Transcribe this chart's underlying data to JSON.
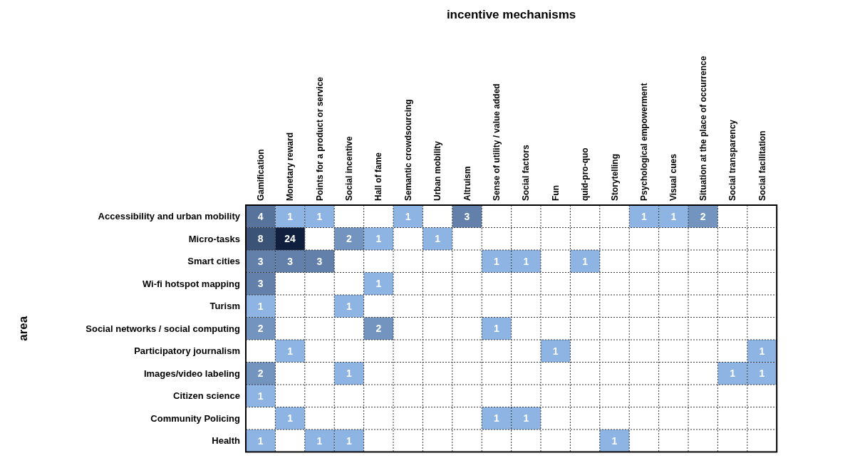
{
  "chart_data": {
    "type": "heatmap",
    "title": "incentive mechanisms",
    "ylabel": "area",
    "grid": true,
    "data_labels": true,
    "categories": [
      "Gamification",
      "Monetary reward",
      "Points for a product or service",
      "Social incentive",
      "Hall of fame",
      "Semantic crowdsourcing",
      "Urban mobility",
      "Altruism",
      "Sense of utility / value added",
      "Social factors",
      "Fun",
      "quid-pro-quo",
      "Storytelling",
      "Psychological empowerment",
      "Visual cues",
      "Situation at the place of occurrence",
      "Social transparency",
      "Social facilitation"
    ],
    "y_categories": [
      "Accessibility and urban mobility",
      "Micro-tasks",
      "Smart cities",
      "Wi-fi hotspot mapping",
      "Turism",
      "Social networks / social computing",
      "Participatory journalism",
      "Images/video labeling",
      "Citizen science",
      "Community Policing",
      "Health"
    ],
    "cells": [
      [
        4,
        1,
        1,
        null,
        null,
        1,
        null,
        3,
        null,
        null,
        null,
        null,
        null,
        1,
        1,
        2,
        null,
        null
      ],
      [
        8,
        24,
        null,
        2,
        1,
        null,
        1,
        null,
        null,
        null,
        null,
        null,
        null,
        null,
        null,
        null,
        null,
        null
      ],
      [
        3,
        3,
        3,
        null,
        null,
        null,
        null,
        null,
        1,
        1,
        null,
        1,
        null,
        null,
        null,
        null,
        null,
        null
      ],
      [
        3,
        null,
        null,
        null,
        1,
        null,
        null,
        null,
        null,
        null,
        null,
        null,
        null,
        null,
        null,
        null,
        null,
        null
      ],
      [
        1,
        null,
        null,
        1,
        null,
        null,
        null,
        null,
        null,
        null,
        null,
        null,
        null,
        null,
        null,
        null,
        null,
        null
      ],
      [
        2,
        null,
        null,
        null,
        2,
        null,
        null,
        null,
        1,
        null,
        null,
        null,
        null,
        null,
        null,
        null,
        null,
        null
      ],
      [
        null,
        1,
        null,
        null,
        null,
        null,
        null,
        null,
        null,
        null,
        1,
        null,
        null,
        null,
        null,
        null,
        null,
        1
      ],
      [
        2,
        null,
        null,
        1,
        null,
        null,
        null,
        null,
        null,
        null,
        null,
        null,
        null,
        null,
        null,
        null,
        1,
        1
      ],
      [
        1,
        null,
        null,
        null,
        null,
        null,
        null,
        null,
        null,
        null,
        null,
        null,
        null,
        null,
        null,
        null,
        null,
        null
      ],
      [
        null,
        1,
        null,
        null,
        null,
        null,
        null,
        null,
        1,
        1,
        null,
        null,
        null,
        null,
        null,
        null,
        null,
        null
      ],
      [
        1,
        null,
        1,
        1,
        null,
        null,
        null,
        null,
        null,
        null,
        null,
        null,
        1,
        null,
        null,
        null,
        null,
        null
      ]
    ]
  }
}
